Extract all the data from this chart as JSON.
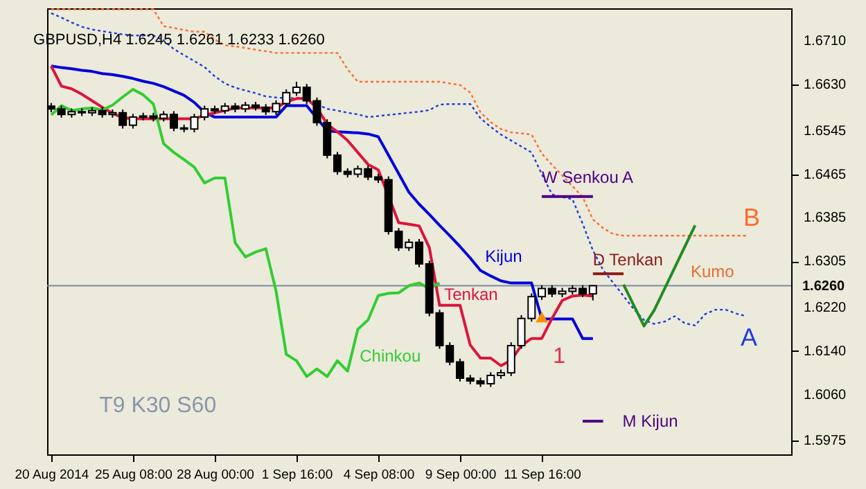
{
  "chart_data": {
    "type": "candlestick",
    "title": "GBPUSD,H4 1.6245 1.6261 1.6233 1.6260",
    "categories": [
      "20 Aug 2014",
      null,
      null,
      null,
      null,
      null,
      null,
      null,
      "25 Aug 08:00",
      null,
      null,
      null,
      null,
      null,
      null,
      null,
      "28 Aug 00:00",
      null,
      null,
      null,
      null,
      null,
      null,
      null,
      "1 Sep 16:00",
      null,
      null,
      null,
      null,
      null,
      null,
      null,
      "4 Sep 08:00",
      null,
      null,
      null,
      null,
      null,
      null,
      null,
      "9 Sep 00:00",
      null,
      null,
      null,
      null,
      null,
      null,
      null,
      "11 Sep 16:00",
      null,
      null,
      null,
      null,
      null,
      null,
      null,
      null,
      null,
      null,
      null,
      null,
      null,
      null,
      null,
      null,
      null,
      null,
      null,
      null,
      null,
      null,
      null,
      null
    ],
    "ohlc": [
      [
        1.659,
        1.6596,
        1.6579,
        1.6585
      ],
      [
        1.6585,
        1.6591,
        1.6569,
        1.6575
      ],
      [
        1.6575,
        1.6586,
        1.6569,
        1.658
      ],
      [
        1.658,
        1.6586,
        1.6572,
        1.6578
      ],
      [
        1.6578,
        1.6588,
        1.6572,
        1.6582
      ],
      [
        1.6582,
        1.6588,
        1.6569,
        1.6575
      ],
      [
        1.6575,
        1.6584,
        1.6569,
        1.6578
      ],
      [
        1.6578,
        1.6584,
        1.6549,
        1.6555
      ],
      [
        1.6555,
        1.6576,
        1.6549,
        1.657
      ],
      [
        1.657,
        1.6578,
        1.6564,
        1.6572
      ],
      [
        1.6572,
        1.6578,
        1.6562,
        1.6568
      ],
      [
        1.6568,
        1.6581,
        1.6562,
        1.6575
      ],
      [
        1.6575,
        1.6581,
        1.6544,
        1.655
      ],
      [
        1.655,
        1.6556,
        1.6542,
        1.6548
      ],
      [
        1.6548,
        1.6576,
        1.6542,
        1.657
      ],
      [
        1.657,
        1.6591,
        1.6564,
        1.6585
      ],
      [
        1.6585,
        1.6591,
        1.6576,
        1.6582
      ],
      [
        1.6582,
        1.6596,
        1.6576,
        1.659
      ],
      [
        1.659,
        1.6596,
        1.6579,
        1.6585
      ],
      [
        1.6585,
        1.6598,
        1.6579,
        1.6592
      ],
      [
        1.6592,
        1.6598,
        1.6582,
        1.6588
      ],
      [
        1.6588,
        1.6594,
        1.6574,
        1.658
      ],
      [
        1.658,
        1.6601,
        1.6574,
        1.6595
      ],
      [
        1.6595,
        1.6621,
        1.6589,
        1.6615
      ],
      [
        1.6615,
        1.6635,
        1.6609,
        1.6625
      ],
      [
        1.6625,
        1.6631,
        1.6594,
        1.66
      ],
      [
        1.66,
        1.6606,
        1.6554,
        1.656
      ],
      [
        1.656,
        1.6566,
        1.6494,
        1.65
      ],
      [
        1.65,
        1.6506,
        1.6464,
        1.647
      ],
      [
        1.647,
        1.6476,
        1.6459,
        1.6465
      ],
      [
        1.6465,
        1.6481,
        1.6459,
        1.6475
      ],
      [
        1.6475,
        1.6481,
        1.6454,
        1.646
      ],
      [
        1.646,
        1.6466,
        1.6449,
        1.6455
      ],
      [
        1.6455,
        1.6461,
        1.6354,
        1.636
      ],
      [
        1.636,
        1.6366,
        1.6324,
        1.633
      ],
      [
        1.633,
        1.6346,
        1.6324,
        1.634
      ],
      [
        1.634,
        1.6346,
        1.6294,
        1.63
      ],
      [
        1.63,
        1.6306,
        1.6204,
        1.621
      ],
      [
        1.621,
        1.6216,
        1.6144,
        1.615
      ],
      [
        1.615,
        1.6156,
        1.6114,
        1.612
      ],
      [
        1.612,
        1.6126,
        1.6084,
        1.609
      ],
      [
        1.609,
        1.6096,
        1.6079,
        1.6085
      ],
      [
        1.6085,
        1.6091,
        1.6074,
        1.608
      ],
      [
        1.608,
        1.6101,
        1.6074,
        1.6095
      ],
      [
        1.6095,
        1.6106,
        1.6089,
        1.61
      ],
      [
        1.61,
        1.6156,
        1.6094,
        1.615
      ],
      [
        1.615,
        1.6206,
        1.6144,
        1.62
      ],
      [
        1.62,
        1.6246,
        1.6194,
        1.624
      ],
      [
        1.624,
        1.6261,
        1.6234,
        1.6255
      ],
      [
        1.6255,
        1.6261,
        1.6239,
        1.6245
      ],
      [
        1.6245,
        1.6256,
        1.6239,
        1.625
      ],
      [
        1.625,
        1.6261,
        1.6244,
        1.6255
      ],
      [
        1.6255,
        1.6261,
        1.6239,
        1.6245
      ],
      [
        1.6245,
        1.6261,
        1.6233,
        1.626
      ],
      null,
      null,
      null,
      null,
      null,
      null,
      null,
      null,
      null,
      null,
      null,
      null,
      null,
      null,
      null,
      null,
      null,
      null,
      null
    ],
    "series": [
      {
        "type": "line",
        "name": "A",
        "color": "#1e3cdc",
        "line_style": "dotted",
        "values": [
          1.6761,
          1.6753,
          1.6744,
          1.6736,
          1.6731,
          1.6728,
          1.6725,
          1.6722,
          1.672,
          1.672,
          1.672,
          1.6711,
          1.6695,
          1.6684,
          1.6673,
          1.6662,
          1.6645,
          1.6632,
          1.6624,
          1.6619,
          1.6614,
          1.6608,
          1.6606,
          1.6605,
          1.6605,
          1.6604,
          1.6594,
          1.6585,
          1.6582,
          1.6578,
          1.6575,
          1.657,
          1.6572,
          1.6574,
          1.6576,
          1.6578,
          1.658,
          1.6583,
          1.6593,
          1.6594,
          1.6594,
          1.6594,
          1.6568,
          1.6552,
          1.6538,
          1.6527,
          1.6516,
          1.6505,
          1.6465,
          1.6428,
          1.6423,
          1.6419,
          1.6374,
          1.6325,
          1.6289,
          1.6265,
          1.6241,
          1.6217,
          1.6197,
          1.619,
          1.6194,
          1.6204,
          1.6191,
          1.6187,
          1.6208,
          1.6216,
          1.6216,
          1.6209,
          1.6204,
          null,
          null,
          null,
          null
        ]
      },
      {
        "type": "line",
        "name": "B",
        "color": "#ff6a2a",
        "line_style": "dotted",
        "values": [
          1.6768,
          1.6768,
          1.6768,
          1.6768,
          1.6768,
          1.6768,
          1.6768,
          1.6768,
          1.6768,
          1.6768,
          1.6768,
          1.6737,
          1.6734,
          1.673,
          1.6727,
          1.6727,
          1.6713,
          1.6702,
          1.67,
          1.6697,
          1.6694,
          1.6691,
          1.6688,
          1.6688,
          1.6688,
          1.6688,
          1.6688,
          1.6688,
          1.6688,
          1.6658,
          1.6635,
          1.6635,
          1.6635,
          1.6635,
          1.6635,
          1.6635,
          1.6635,
          1.6635,
          1.6635,
          1.6632,
          1.6629,
          1.6615,
          1.6579,
          1.6561,
          1.6548,
          1.6542,
          1.654,
          1.6538,
          1.6503,
          1.6482,
          1.6463,
          1.6443,
          1.6423,
          1.6382,
          1.6366,
          1.6355,
          1.6352,
          1.6352,
          1.6352,
          1.6352,
          1.6352,
          1.6352,
          1.6352,
          1.6352,
          1.6352,
          1.6352,
          1.6352,
          1.6352,
          1.6352,
          null,
          null,
          null,
          null
        ]
      },
      {
        "type": "line",
        "name": "Kijun",
        "color": "#0000dd",
        "values": [
          1.6664,
          1.6661,
          1.6659,
          1.6656,
          1.6654,
          1.665,
          1.6648,
          1.6645,
          1.6641,
          1.6636,
          1.6632,
          1.6626,
          1.6618,
          1.661,
          1.6597,
          1.6579,
          1.657,
          1.657,
          1.657,
          1.657,
          1.657,
          1.657,
          1.657,
          1.6591,
          1.6591,
          1.6591,
          1.6568,
          1.6545,
          1.6543,
          1.6542,
          1.6541,
          1.6539,
          1.6534,
          1.65,
          1.6466,
          1.6432,
          1.641,
          1.6391,
          1.6371,
          1.6352,
          1.6332,
          1.6311,
          1.6288,
          1.6278,
          1.6269,
          1.6265,
          1.6265,
          1.6265,
          1.6199,
          1.6199,
          1.6199,
          1.6199,
          1.6163,
          1.6163,
          null,
          null,
          null,
          null,
          null,
          null,
          null,
          null,
          null,
          null,
          null,
          null,
          null,
          null,
          null,
          null,
          null,
          null,
          null
        ]
      },
      {
        "type": "line",
        "name": "Tenkan",
        "color": "#dc143c",
        "values": [
          1.6664,
          1.6627,
          1.6622,
          1.6612,
          1.66,
          1.6588,
          1.6577,
          1.6569,
          1.6567,
          1.6567,
          1.6567,
          1.6567,
          1.6567,
          1.6567,
          1.6567,
          1.6573,
          1.6578,
          1.6582,
          1.6587,
          1.6587,
          1.6587,
          1.6587,
          1.6587,
          1.6598,
          1.6604,
          1.6604,
          1.6587,
          1.6557,
          1.6543,
          1.6527,
          1.6505,
          1.6483,
          1.6473,
          null,
          1.6376,
          1.6373,
          1.637,
          1.633,
          1.6224,
          1.6224,
          1.6224,
          1.6151,
          1.6127,
          1.6127,
          1.6113,
          1.6123,
          1.615,
          1.6163,
          1.6163,
          1.62,
          1.6233,
          1.6241,
          1.6243,
          1.6241,
          null,
          null,
          null,
          null,
          null,
          null,
          null,
          null,
          null,
          null,
          null,
          null,
          null,
          null,
          null,
          null,
          null,
          null,
          null
        ]
      },
      {
        "type": "line",
        "name": "Chinkou",
        "color": "#32cd32",
        "values": [
          1.6574,
          1.6591,
          1.6582,
          1.6585,
          1.6587,
          1.6583,
          1.6592,
          1.6607,
          1.6621,
          1.6611,
          1.6594,
          1.6521,
          1.6505,
          1.6492,
          1.6478,
          1.6449,
          1.6458,
          1.6458,
          1.6339,
          1.6313,
          1.6322,
          1.6328,
          1.625,
          1.6134,
          1.6122,
          1.6093,
          1.6107,
          1.6093,
          1.6122,
          1.6103,
          1.618,
          1.6197,
          1.6242,
          1.6246,
          1.6247,
          1.626,
          1.6265,
          1.6255,
          1.6265,
          null,
          null,
          null,
          null,
          null,
          null,
          null,
          null,
          null,
          null,
          null,
          null,
          null,
          null,
          null,
          null,
          null,
          null,
          null,
          null,
          null,
          null,
          null,
          null,
          null,
          null,
          null,
          null,
          null,
          null,
          null,
          null,
          null,
          null
        ]
      },
      {
        "type": "line",
        "name": "W Senkou A",
        "color": "#4b0082",
        "values": [
          null,
          null,
          null,
          null,
          null,
          null,
          null,
          null,
          null,
          null,
          null,
          null,
          null,
          null,
          null,
          null,
          null,
          null,
          null,
          null,
          null,
          null,
          null,
          null,
          null,
          null,
          null,
          null,
          null,
          null,
          null,
          null,
          null,
          null,
          null,
          null,
          null,
          null,
          null,
          null,
          null,
          null,
          null,
          null,
          null,
          null,
          null,
          null,
          1.6424,
          1.6424,
          1.6424,
          1.6424,
          1.6424,
          1.6424,
          null,
          null,
          null,
          null,
          null,
          null,
          null,
          null,
          null,
          null,
          null,
          null,
          null,
          null,
          null,
          null,
          null,
          null,
          null
        ]
      },
      {
        "type": "line",
        "name": "D Tenkan",
        "color": "#8b1a1a",
        "values": [
          null,
          null,
          null,
          null,
          null,
          null,
          null,
          null,
          null,
          null,
          null,
          null,
          null,
          null,
          null,
          null,
          null,
          null,
          null,
          null,
          null,
          null,
          null,
          null,
          null,
          null,
          null,
          null,
          null,
          null,
          null,
          null,
          null,
          null,
          null,
          null,
          null,
          null,
          null,
          null,
          null,
          null,
          null,
          null,
          null,
          null,
          null,
          null,
          null,
          null,
          null,
          null,
          null,
          1.6282,
          1.6282,
          1.6282,
          1.6282,
          null,
          null,
          null,
          null,
          null,
          null,
          null,
          null,
          null,
          null,
          null,
          null,
          null,
          null,
          null,
          null
        ]
      },
      {
        "type": "line",
        "name": "M Kijun",
        "color": "#4b0082",
        "values": [
          null,
          null,
          null,
          null,
          null,
          null,
          null,
          null,
          null,
          null,
          null,
          null,
          null,
          null,
          null,
          null,
          null,
          null,
          null,
          null,
          null,
          null,
          null,
          null,
          null,
          null,
          null,
          null,
          null,
          null,
          null,
          null,
          null,
          null,
          null,
          null,
          null,
          null,
          null,
          null,
          null,
          null,
          null,
          null,
          null,
          null,
          null,
          null,
          null,
          null,
          null,
          null,
          1.6011,
          1.6011,
          1.6011,
          null,
          null,
          null,
          null,
          null,
          null,
          null,
          null,
          null,
          null,
          null,
          null,
          null,
          null,
          null,
          null,
          null,
          null
        ]
      },
      {
        "type": "line",
        "color": "#228b22",
        "values": [
          null,
          null,
          null,
          null,
          null,
          null,
          null,
          null,
          null,
          null,
          null,
          null,
          null,
          null,
          null,
          null,
          null,
          null,
          null,
          null,
          null,
          null,
          null,
          null,
          null,
          null,
          null,
          null,
          null,
          null,
          null,
          null,
          null,
          null,
          null,
          null,
          null,
          null,
          null,
          null,
          null,
          null,
          null,
          null,
          null,
          null,
          null,
          null,
          null,
          null,
          null,
          null,
          null,
          null,
          null,
          null,
          1.6262,
          1.6224,
          1.6186,
          1.6215,
          1.6254,
          1.6293,
          1.6332,
          1.6371,
          null,
          null,
          null,
          null,
          null,
          null,
          null,
          null,
          null
        ]
      },
      {
        "type": "scatter",
        "color": "#ff8c00",
        "marker": "triangle",
        "values": [
          null,
          null,
          null,
          null,
          null,
          null,
          null,
          null,
          null,
          null,
          null,
          null,
          null,
          null,
          null,
          null,
          null,
          null,
          null,
          null,
          null,
          null,
          null,
          null,
          null,
          null,
          null,
          null,
          null,
          null,
          null,
          null,
          null,
          null,
          null,
          null,
          null,
          null,
          null,
          null,
          null,
          null,
          null,
          null,
          null,
          null,
          null,
          null,
          1.6199,
          null,
          null,
          null,
          null,
          null,
          null,
          null,
          null,
          null,
          null,
          null,
          null,
          null,
          null,
          null,
          null,
          null,
          null,
          null,
          null,
          null,
          null,
          null,
          null
        ]
      }
    ],
    "ylim": [
      1.595,
      1.677
    ],
    "yticks": [
      1.5975,
      {
        "value": 1.606,
        "label": "1.6060"
      },
      {
        "value": 1.614,
        "label": "1.6140"
      },
      {
        "value": 1.622,
        "label": "1.6220"
      },
      1.6305,
      1.6385,
      1.6465,
      1.6545,
      {
        "value": 1.663,
        "label": "1.6630"
      },
      {
        "value": 1.671,
        "label": "1.6710"
      }
    ],
    "ref_lines": [
      {
        "axis": "y",
        "value": 1.626,
        "label": "1.6260",
        "color": "#7a8aa0"
      }
    ],
    "annotations": [
      "T9 K30 S60",
      "Kumo",
      "1"
    ]
  }
}
